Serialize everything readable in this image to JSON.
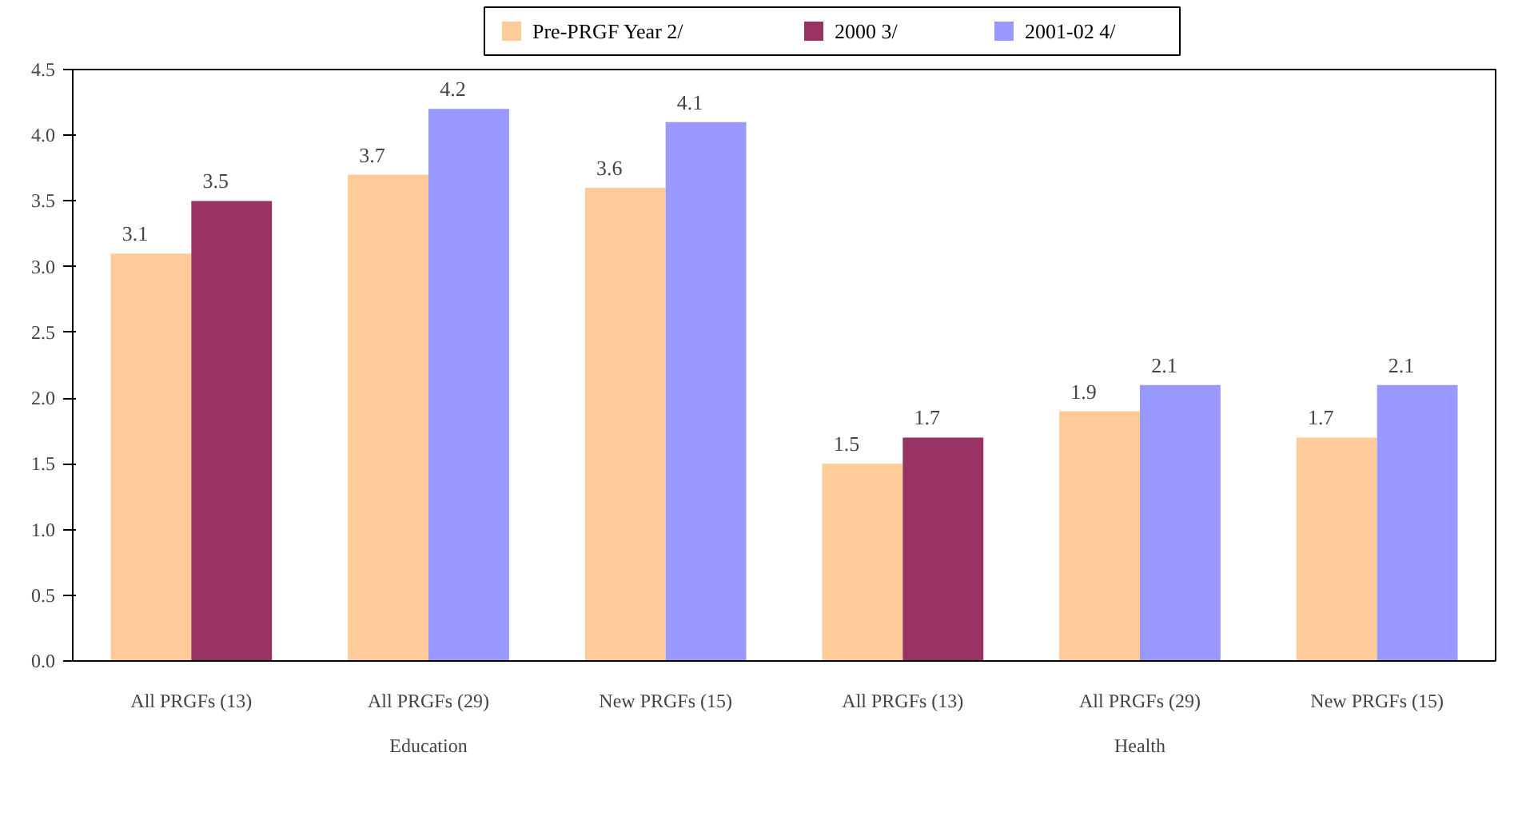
{
  "chart_data": {
    "type": "bar",
    "categories": [
      "All PRGFs (13)",
      "All PRGFs (29)",
      "New PRGFs (15)",
      "All PRGFs (13)",
      "All PRGFs (29)",
      "New PRGFs (15)"
    ],
    "series": [
      {
        "name": "Pre-PRGF Year  2/",
        "color": "#ffcc99",
        "values": [
          3.1,
          3.7,
          3.6,
          1.5,
          1.9,
          1.7
        ]
      },
      {
        "name": "2000 3/",
        "color": "#993366",
        "values": [
          3.5,
          null,
          null,
          1.7,
          null,
          null
        ]
      },
      {
        "name": "2001-02  4/",
        "color": "#9999ff",
        "values": [
          null,
          4.2,
          4.1,
          null,
          2.1,
          2.1
        ]
      }
    ],
    "ylim": [
      0,
      4.5
    ],
    "yticks": [
      {
        "value": 0,
        "label": "0.0"
      },
      {
        "value": 0.5,
        "label": "0.5"
      },
      {
        "value": 1,
        "label": "1.0"
      },
      {
        "value": 1.5,
        "label": "1.5"
      },
      {
        "value": 2,
        "label": "2.0"
      },
      {
        "value": 2.5,
        "label": "2.5"
      },
      {
        "value": 3,
        "label": "3.0"
      },
      {
        "value": 3.5,
        "label": "3.5"
      },
      {
        "value": 4,
        "label": "4.0"
      },
      {
        "value": 4.5,
        "label": "4.5"
      }
    ],
    "annotations": [
      "Education",
      "Health"
    ],
    "data_labels": true,
    "legend": "top",
    "grid": false
  }
}
